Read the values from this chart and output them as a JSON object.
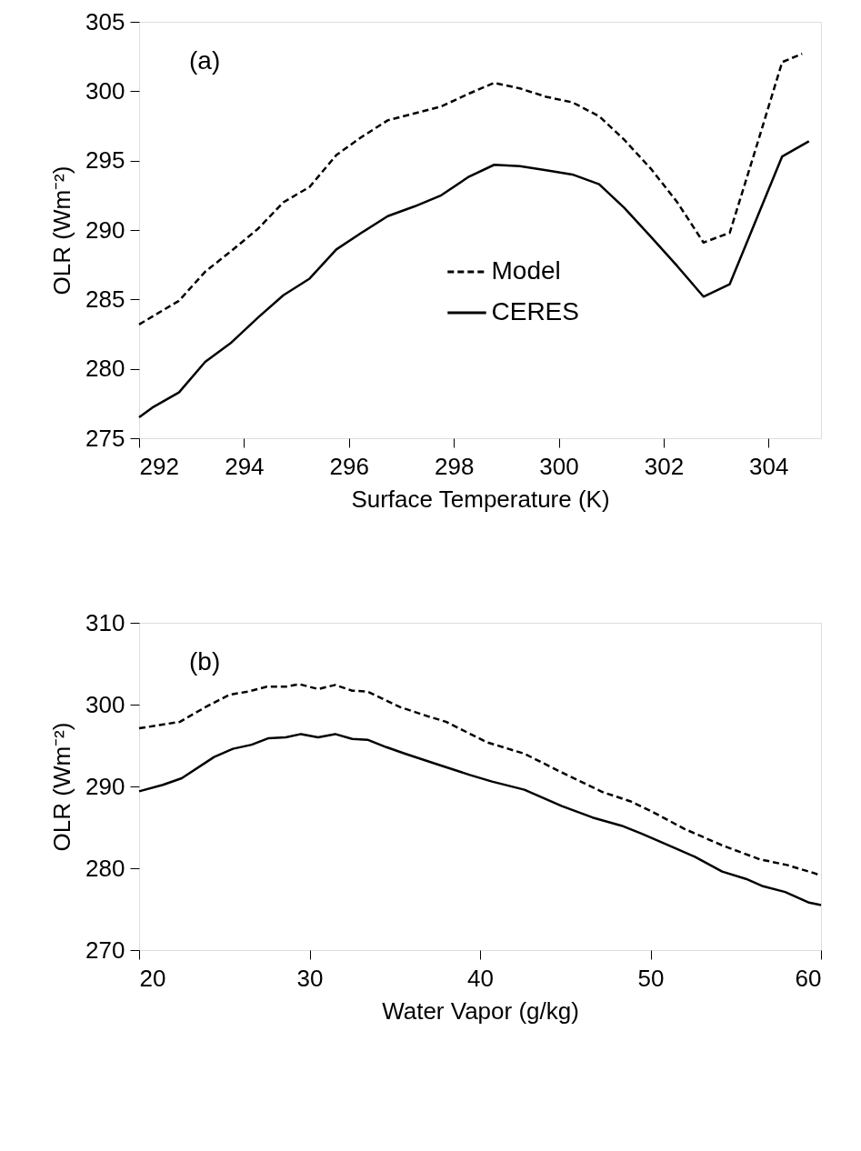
{
  "chart_data": [
    {
      "type": "line",
      "xlabel": "Surface Temperature (K)",
      "ylabel": "OLR (Wm⁻²)",
      "annotations": [
        "(a)"
      ],
      "xlim": [
        292,
        305
      ],
      "xticks": [
        292,
        294,
        296,
        298,
        300,
        302,
        304
      ],
      "ylim": [
        275,
        305
      ],
      "yticks": [
        275,
        280,
        285,
        290,
        295,
        300,
        305
      ],
      "grid": false,
      "legend": "center",
      "marker": "none",
      "series": [
        {
          "name": "Model",
          "color": "#000000",
          "line_style": "dashed",
          "x": [
            292.0,
            292.76,
            293.26,
            293.76,
            294.27,
            294.75,
            295.25,
            295.76,
            296.24,
            296.74,
            297.76,
            298.27,
            298.77,
            299.26,
            299.76,
            300.26,
            300.77,
            301.25,
            301.76,
            302.26,
            302.76,
            303.26,
            303.76,
            304.26,
            304.64
          ],
          "values": [
            283.2,
            284.9,
            287.0,
            288.5,
            290.1,
            292.0,
            293.1,
            295.4,
            296.7,
            297.9,
            298.9,
            299.8,
            300.6,
            300.2,
            299.6,
            299.2,
            298.2,
            296.5,
            294.4,
            292.0,
            289.1,
            289.8,
            295.9,
            302.1,
            302.7
          ]
        },
        {
          "name": "CERES",
          "color": "#000000",
          "line_style": "solid",
          "x": [
            292.0,
            292.25,
            292.76,
            293.26,
            293.76,
            294.27,
            294.75,
            295.25,
            295.76,
            296.24,
            296.74,
            297.25,
            297.76,
            298.27,
            298.77,
            299.26,
            299.76,
            300.26,
            300.77,
            301.25,
            301.76,
            302.26,
            302.76,
            303.26,
            303.76,
            304.26,
            304.77
          ],
          "values": [
            276.5,
            277.2,
            278.3,
            280.5,
            281.9,
            283.7,
            285.3,
            286.5,
            288.6,
            289.8,
            291.0,
            291.7,
            292.5,
            293.8,
            294.7,
            294.6,
            294.3,
            294.0,
            293.3,
            291.6,
            289.5,
            287.4,
            285.2,
            286.1,
            290.7,
            295.3,
            296.4
          ]
        }
      ]
    },
    {
      "type": "line",
      "xlabel": "Water Vapor (g/kg)",
      "ylabel": "OLR (Wm⁻²)",
      "annotations": [
        "(b)"
      ],
      "xlim": [
        20,
        60
      ],
      "xticks": [
        20,
        30,
        40,
        50,
        60
      ],
      "ylim": [
        270,
        310
      ],
      "yticks": [
        270,
        280,
        290,
        300,
        310
      ],
      "grid": false,
      "legend": "bottom left",
      "marker": "none",
      "series": [
        {
          "name": "Model",
          "color": "#000000",
          "line_style": "dashed",
          "x": [
            20.0,
            21.2,
            22.4,
            23.9,
            25.3,
            26.4,
            27.5,
            28.6,
            29.4,
            30.5,
            31.5,
            32.5,
            33.4,
            35.3,
            36.9,
            38.0,
            40.4,
            42.6,
            44.8,
            47.2,
            48.8,
            50.2,
            52.0,
            54.2,
            56.4,
            58.0,
            59.6,
            60.0
          ],
          "values": [
            297.1,
            297.5,
            297.9,
            299.7,
            301.2,
            301.6,
            302.2,
            302.2,
            302.5,
            301.9,
            302.4,
            301.7,
            301.6,
            299.7,
            298.6,
            297.9,
            295.4,
            294.0,
            291.7,
            289.3,
            288.2,
            286.8,
            284.8,
            282.8,
            281.1,
            280.4,
            279.4,
            279.1
          ]
        },
        {
          "name": "CERES",
          "color": "#000000",
          "line_style": "solid",
          "x": [
            20.0,
            21.4,
            22.5,
            24.4,
            25.5,
            26.6,
            27.6,
            28.6,
            29.5,
            30.5,
            31.5,
            32.5,
            33.4,
            34.5,
            35.6,
            37.5,
            39.4,
            40.7,
            42.6,
            44.8,
            46.6,
            48.3,
            49.5,
            51.5,
            52.6,
            54.2,
            55.6,
            56.6,
            57.9,
            59.3,
            60.0
          ],
          "values": [
            289.4,
            290.2,
            291.0,
            293.6,
            294.6,
            295.1,
            295.9,
            296.0,
            296.4,
            296.0,
            296.4,
            295.8,
            295.7,
            294.8,
            294.0,
            292.7,
            291.4,
            290.6,
            289.6,
            287.6,
            286.2,
            285.2,
            284.2,
            282.4,
            281.4,
            279.6,
            278.7,
            277.8,
            277.1,
            275.8,
            275.5
          ]
        }
      ]
    }
  ]
}
